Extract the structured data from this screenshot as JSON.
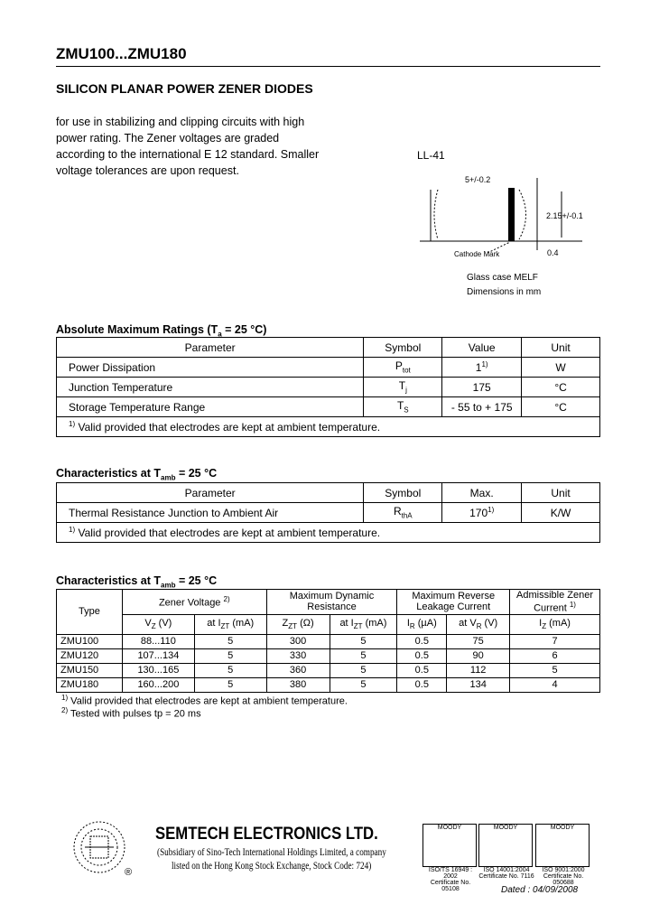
{
  "title": "ZMU100...ZMU180",
  "subtitle": "SILICON PLANAR POWER ZENER DIODES",
  "intro": "for use in stabilizing and clipping circuits with high power rating. The Zener voltages are graded according to the international E 12 standard. Smaller voltage tolerances are upon request.",
  "diagram": {
    "package": "LL-41",
    "length": "5+/-0.2",
    "diameter": "2.15+/-0.1",
    "band": "0.4",
    "cathode": "Cathode Mark",
    "case": "Glass case MELF",
    "dims": "Dimensions in mm"
  },
  "abs_max": {
    "heading": "Absolute Maximum Ratings (T",
    "heading_sub": "a",
    "heading_end": " = 25 °C)",
    "headers": [
      "Parameter",
      "Symbol",
      "Value",
      "Unit"
    ],
    "rows": [
      {
        "param": "Power Dissipation",
        "sym": "P",
        "sym_sub": "tot",
        "value": "1",
        "value_sup": "1)",
        "unit": "W"
      },
      {
        "param": "Junction Temperature",
        "sym": "T",
        "sym_sub": "j",
        "value": "175",
        "value_sup": "",
        "unit": "°C"
      },
      {
        "param": "Storage Temperature Range",
        "sym": "T",
        "sym_sub": "S",
        "value": "- 55 to + 175",
        "value_sup": "",
        "unit": "°C"
      }
    ],
    "footnote_mark": "1)",
    "footnote": " Valid provided that electrodes are kept at ambient temperature."
  },
  "char1": {
    "heading": "Characteristics at T",
    "heading_sub": "amb",
    "heading_end": " = 25 °C",
    "headers": [
      "Parameter",
      "Symbol",
      "Max.",
      "Unit"
    ],
    "row": {
      "param": "Thermal Resistance Junction to Ambient Air",
      "sym": "R",
      "sym_sub": "thA",
      "value": "170",
      "value_sup": "1)",
      "unit": "K/W"
    },
    "footnote_mark": "1)",
    "footnote": " Valid provided that electrodes are kept at ambient temperature."
  },
  "char2": {
    "heading": "Characteristics at T",
    "heading_sub": "amb",
    "heading_end": " = 25 °C",
    "h_type": "Type",
    "h_zener": "Zener Voltage",
    "h_zener_sup": "2)",
    "h_dyn": "Maximum Dynamic Resistance",
    "h_leak": "Maximum Reverse Leakage Current",
    "h_adm": "Admissible Zener Current",
    "h_adm_sup": "1)",
    "sub": [
      "V",
      "Z",
      " (V)",
      "at I",
      "ZT",
      " (mA)",
      "Z",
      "ZT",
      " (Ω)",
      "at I",
      "ZT",
      " (mA)",
      "I",
      "R",
      " (µA)",
      "at V",
      "R",
      " (V)",
      "I",
      "Z",
      " (mA)"
    ],
    "rows": [
      [
        "ZMU100",
        "88...110",
        "5",
        "300",
        "5",
        "0.5",
        "75",
        "7"
      ],
      [
        "ZMU120",
        "107...134",
        "5",
        "330",
        "5",
        "0.5",
        "90",
        "6"
      ],
      [
        "ZMU150",
        "130...165",
        "5",
        "360",
        "5",
        "0.5",
        "112",
        "5"
      ],
      [
        "ZMU180",
        "160...200",
        "5",
        "380",
        "5",
        "0.5",
        "134",
        "4"
      ]
    ],
    "fn1_mark": "1)",
    "fn1": " Valid provided that electrodes are kept at ambient temperature.",
    "fn2_mark": "2)",
    "fn2": " Tested with pulses tp = 20 ms"
  },
  "footer": {
    "company": "SEMTECH ELECTRONICS LTD.",
    "sub1": "(Subsidiary of Sino-Tech International Holdings Limited, a company",
    "sub2": "listed on the Hong Kong Stock Exchange, Stock Code: 724)",
    "registered": "®",
    "certs": [
      {
        "logo": "MOODY",
        "std": "ISO/TS 16949 : 2002",
        "cert": "Certificate No. 05108"
      },
      {
        "logo": "MOODY",
        "std": "ISO 14001:2004",
        "cert": "Certificate No. 7116"
      },
      {
        "logo": "MOODY",
        "std": "ISO 9001:2000",
        "cert": "Certificate No. 050688"
      }
    ],
    "dated": "Dated : 04/09/2008"
  }
}
